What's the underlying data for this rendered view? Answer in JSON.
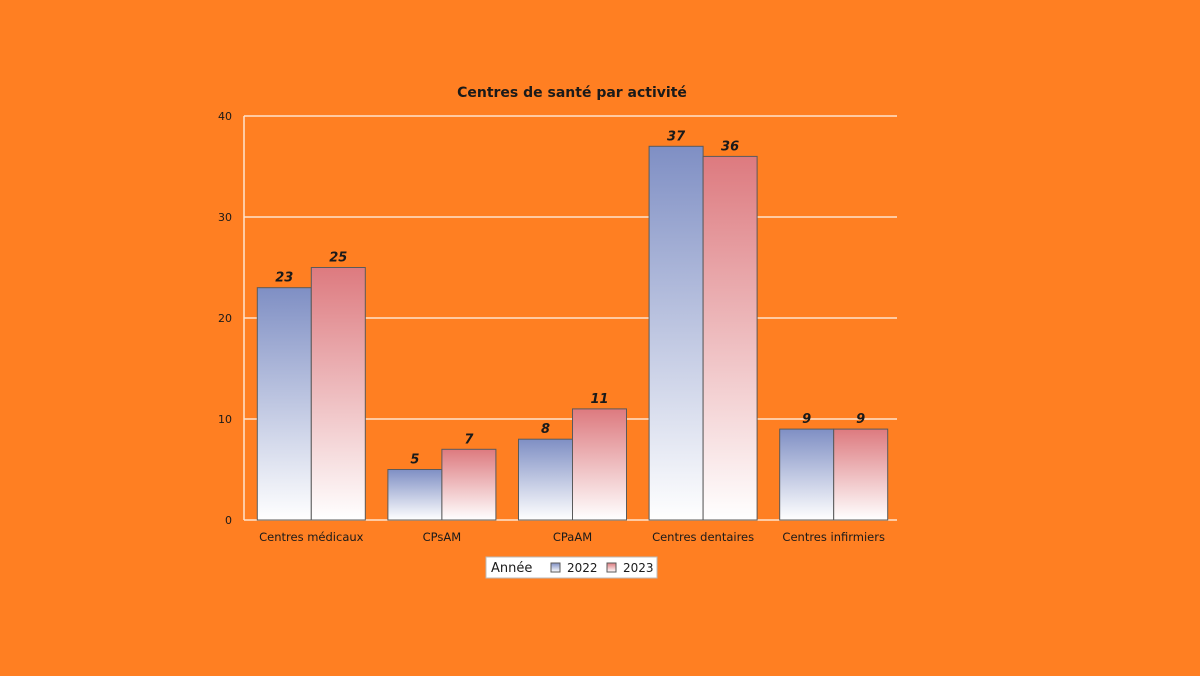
{
  "chart_data": {
    "type": "bar",
    "title": "Centres de santé par activité",
    "xlabel": "",
    "ylabel": "",
    "categories": [
      "Centres médicaux",
      "CPsAM",
      "CPaAM",
      "Centres dentaires",
      "Centres infirmiers"
    ],
    "series": [
      {
        "name": "2022",
        "values": [
          23,
          5,
          8,
          37,
          9
        ],
        "color": "#7F8FC4"
      },
      {
        "name": "2023",
        "values": [
          25,
          7,
          11,
          36,
          9
        ],
        "color": "#DD7A7F"
      }
    ],
    "ylim": [
      0,
      40
    ],
    "yticks": [
      0,
      10,
      20,
      30,
      40
    ],
    "grid": true,
    "legend": {
      "title": "Année",
      "placement": "bottom-center"
    }
  },
  "colors": {
    "background": "#FF7F22",
    "gridline": "#FFE4CC",
    "bar_outline": "#5a5a5a"
  }
}
